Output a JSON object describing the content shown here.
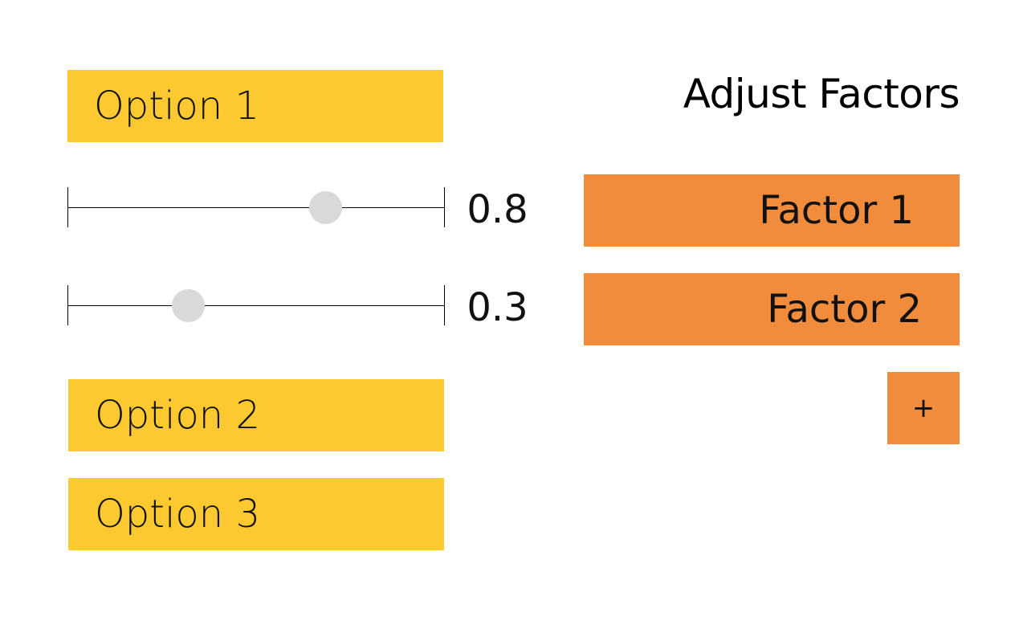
{
  "title": "Adjust Factors",
  "options": [
    {
      "label": "Option 1"
    },
    {
      "label": "Option 2"
    },
    {
      "label": "Option 3"
    }
  ],
  "sliders": [
    {
      "value": 0.8,
      "value_label": "0.8"
    },
    {
      "value": 0.3,
      "value_label": "0.3"
    }
  ],
  "factors": [
    {
      "label": "Factor 1"
    },
    {
      "label": "Factor 2"
    }
  ],
  "add_button": {
    "label": "+"
  },
  "colors": {
    "option": "#fcc930",
    "factor": "#f08c3c",
    "thumb": "#d9d9d9"
  }
}
